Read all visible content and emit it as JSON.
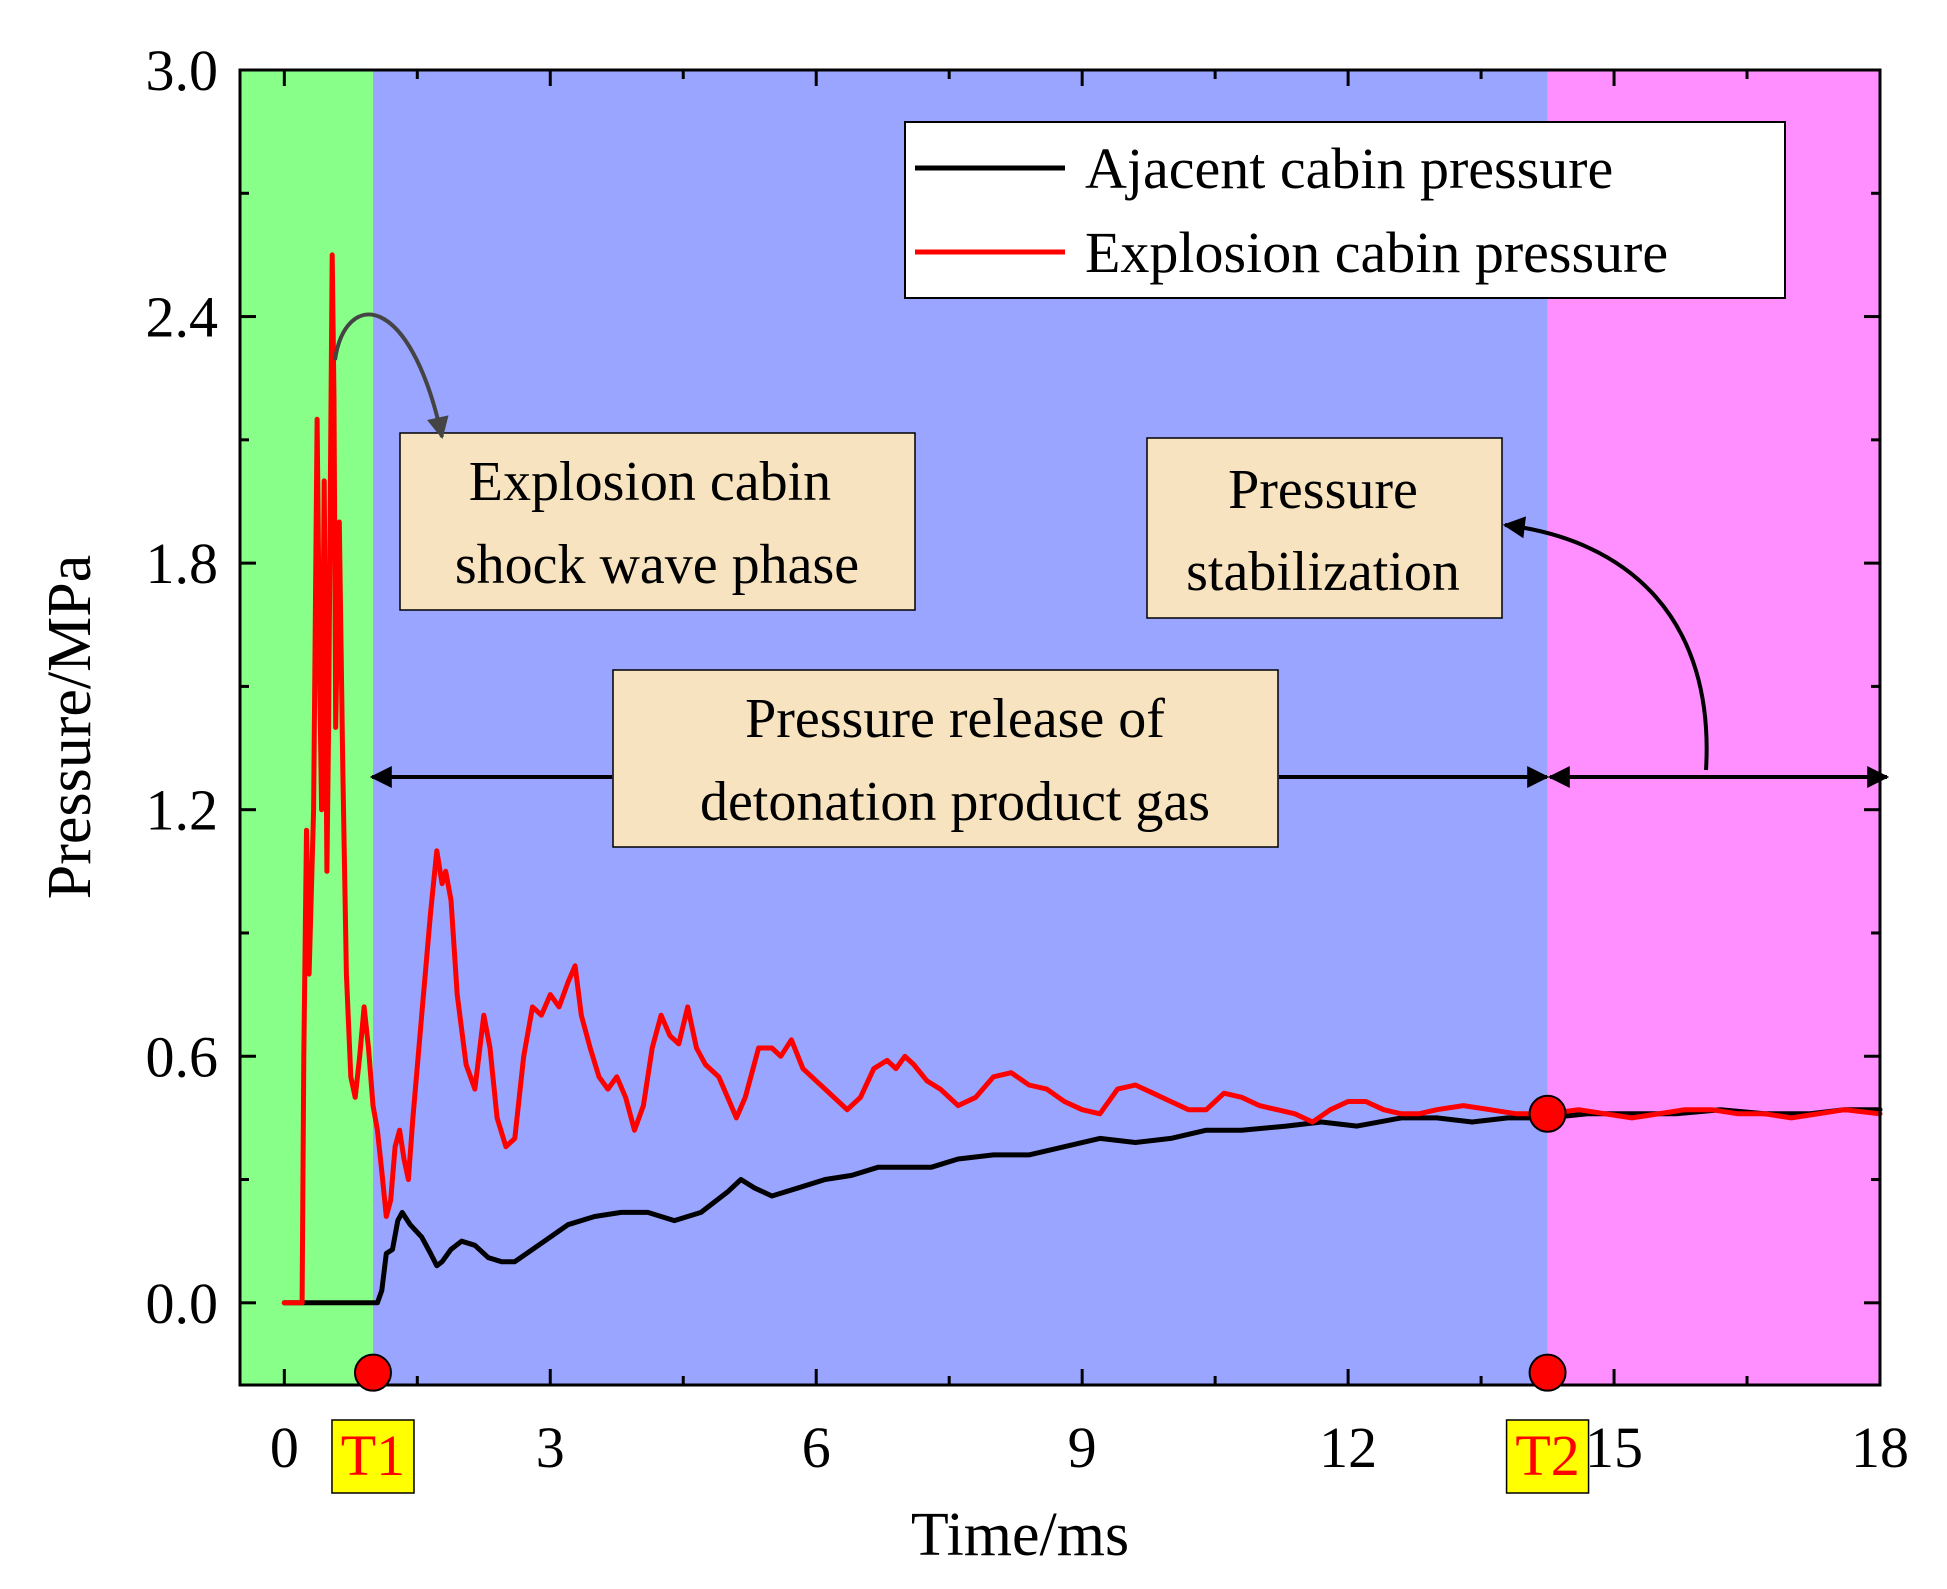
{
  "chart_data": {
    "type": "line",
    "xlabel": "Time/ms",
    "ylabel": "Pressure/MPa",
    "xlim": [
      -0.5,
      18
    ],
    "ylim": [
      -0.2,
      3.0
    ],
    "x_ticks": [
      "0",
      "3",
      "6",
      "9",
      "12",
      "15",
      "18"
    ],
    "x_tick_values": [
      0,
      3,
      6,
      9,
      12,
      15,
      18
    ],
    "y_ticks": [
      "0.0",
      "0.6",
      "1.2",
      "1.8",
      "2.4",
      "3.0"
    ],
    "y_tick_values": [
      0.0,
      0.6,
      1.2,
      1.8,
      2.4,
      3.0
    ],
    "phases": [
      {
        "name": "shock-wave",
        "x_start": -0.5,
        "x_end": 1.0,
        "color": "#88ff88"
      },
      {
        "name": "pressure-release",
        "x_start": 1.0,
        "x_end": 14.25,
        "color": "#9aa5ff"
      },
      {
        "name": "stabilization",
        "x_start": 14.25,
        "x_end": 18,
        "color": "#ff8eff"
      }
    ],
    "legend": {
      "placement": "top-right",
      "entries": [
        "Ajacent cabin pressure",
        "Explosion cabin pressure"
      ]
    },
    "series": [
      {
        "name": "Ajacent cabin pressure",
        "color": "#000000",
        "points": [
          [
            0,
            0
          ],
          [
            0.5,
            0
          ],
          [
            1.05,
            0
          ],
          [
            1.1,
            0.03
          ],
          [
            1.15,
            0.12
          ],
          [
            1.22,
            0.13
          ],
          [
            1.28,
            0.2
          ],
          [
            1.33,
            0.22
          ],
          [
            1.42,
            0.19
          ],
          [
            1.55,
            0.16
          ],
          [
            1.65,
            0.12
          ],
          [
            1.72,
            0.09
          ],
          [
            1.78,
            0.1
          ],
          [
            1.88,
            0.13
          ],
          [
            2.0,
            0.15
          ],
          [
            2.15,
            0.14
          ],
          [
            2.3,
            0.11
          ],
          [
            2.45,
            0.1
          ],
          [
            2.6,
            0.1
          ],
          [
            2.8,
            0.13
          ],
          [
            3.0,
            0.16
          ],
          [
            3.2,
            0.19
          ],
          [
            3.5,
            0.21
          ],
          [
            3.8,
            0.22
          ],
          [
            4.1,
            0.22
          ],
          [
            4.4,
            0.2
          ],
          [
            4.7,
            0.22
          ],
          [
            5.0,
            0.27
          ],
          [
            5.15,
            0.3
          ],
          [
            5.3,
            0.28
          ],
          [
            5.5,
            0.26
          ],
          [
            5.8,
            0.28
          ],
          [
            6.1,
            0.3
          ],
          [
            6.4,
            0.31
          ],
          [
            6.7,
            0.33
          ],
          [
            7.0,
            0.33
          ],
          [
            7.3,
            0.33
          ],
          [
            7.6,
            0.35
          ],
          [
            8.0,
            0.36
          ],
          [
            8.4,
            0.36
          ],
          [
            8.8,
            0.38
          ],
          [
            9.2,
            0.4
          ],
          [
            9.6,
            0.39
          ],
          [
            10.0,
            0.4
          ],
          [
            10.4,
            0.42
          ],
          [
            10.8,
            0.42
          ],
          [
            11.3,
            0.43
          ],
          [
            11.7,
            0.44
          ],
          [
            12.1,
            0.43
          ],
          [
            12.6,
            0.45
          ],
          [
            13.0,
            0.45
          ],
          [
            13.4,
            0.44
          ],
          [
            13.8,
            0.45
          ],
          [
            14.25,
            0.45
          ],
          [
            14.7,
            0.46
          ],
          [
            15.2,
            0.46
          ],
          [
            15.7,
            0.46
          ],
          [
            16.2,
            0.47
          ],
          [
            16.7,
            0.46
          ],
          [
            17.2,
            0.46
          ],
          [
            17.6,
            0.47
          ],
          [
            18,
            0.47
          ]
        ]
      },
      {
        "name": "Explosion cabin pressure",
        "color": "#ff0000",
        "points": [
          [
            0,
            0
          ],
          [
            0.2,
            0
          ],
          [
            0.22,
            0.6
          ],
          [
            0.25,
            1.15
          ],
          [
            0.28,
            0.8
          ],
          [
            0.33,
            1.2
          ],
          [
            0.37,
            2.15
          ],
          [
            0.4,
            1.5
          ],
          [
            0.42,
            1.2
          ],
          [
            0.45,
            2.0
          ],
          [
            0.48,
            1.05
          ],
          [
            0.5,
            1.4
          ],
          [
            0.52,
            2.0
          ],
          [
            0.54,
            2.55
          ],
          [
            0.56,
            2.2
          ],
          [
            0.58,
            1.4
          ],
          [
            0.62,
            1.9
          ],
          [
            0.66,
            1.3
          ],
          [
            0.7,
            0.8
          ],
          [
            0.75,
            0.55
          ],
          [
            0.8,
            0.5
          ],
          [
            0.85,
            0.6
          ],
          [
            0.9,
            0.72
          ],
          [
            0.95,
            0.62
          ],
          [
            1.0,
            0.48
          ],
          [
            1.05,
            0.42
          ],
          [
            1.1,
            0.32
          ],
          [
            1.15,
            0.21
          ],
          [
            1.2,
            0.25
          ],
          [
            1.25,
            0.38
          ],
          [
            1.3,
            0.42
          ],
          [
            1.35,
            0.35
          ],
          [
            1.4,
            0.3
          ],
          [
            1.45,
            0.45
          ],
          [
            1.55,
            0.7
          ],
          [
            1.65,
            0.95
          ],
          [
            1.72,
            1.1
          ],
          [
            1.78,
            1.02
          ],
          [
            1.82,
            1.05
          ],
          [
            1.88,
            0.98
          ],
          [
            1.95,
            0.75
          ],
          [
            2.05,
            0.58
          ],
          [
            2.15,
            0.52
          ],
          [
            2.25,
            0.7
          ],
          [
            2.32,
            0.62
          ],
          [
            2.4,
            0.45
          ],
          [
            2.5,
            0.38
          ],
          [
            2.6,
            0.4
          ],
          [
            2.7,
            0.6
          ],
          [
            2.8,
            0.72
          ],
          [
            2.9,
            0.7
          ],
          [
            3.0,
            0.75
          ],
          [
            3.1,
            0.72
          ],
          [
            3.2,
            0.78
          ],
          [
            3.28,
            0.82
          ],
          [
            3.35,
            0.7
          ],
          [
            3.45,
            0.62
          ],
          [
            3.55,
            0.55
          ],
          [
            3.65,
            0.52
          ],
          [
            3.75,
            0.55
          ],
          [
            3.85,
            0.5
          ],
          [
            3.95,
            0.42
          ],
          [
            4.05,
            0.48
          ],
          [
            4.15,
            0.62
          ],
          [
            4.25,
            0.7
          ],
          [
            4.35,
            0.65
          ],
          [
            4.45,
            0.63
          ],
          [
            4.55,
            0.72
          ],
          [
            4.65,
            0.62
          ],
          [
            4.75,
            0.58
          ],
          [
            4.9,
            0.55
          ],
          [
            5.0,
            0.5
          ],
          [
            5.1,
            0.45
          ],
          [
            5.2,
            0.5
          ],
          [
            5.35,
            0.62
          ],
          [
            5.5,
            0.62
          ],
          [
            5.6,
            0.6
          ],
          [
            5.72,
            0.64
          ],
          [
            5.85,
            0.57
          ],
          [
            6.0,
            0.54
          ],
          [
            6.1,
            0.52
          ],
          [
            6.2,
            0.5
          ],
          [
            6.35,
            0.47
          ],
          [
            6.5,
            0.5
          ],
          [
            6.65,
            0.57
          ],
          [
            6.8,
            0.59
          ],
          [
            6.9,
            0.57
          ],
          [
            7.0,
            0.6
          ],
          [
            7.1,
            0.58
          ],
          [
            7.25,
            0.54
          ],
          [
            7.4,
            0.52
          ],
          [
            7.6,
            0.48
          ],
          [
            7.8,
            0.5
          ],
          [
            8.0,
            0.55
          ],
          [
            8.2,
            0.56
          ],
          [
            8.4,
            0.53
          ],
          [
            8.6,
            0.52
          ],
          [
            8.8,
            0.49
          ],
          [
            9.0,
            0.47
          ],
          [
            9.2,
            0.46
          ],
          [
            9.4,
            0.52
          ],
          [
            9.6,
            0.53
          ],
          [
            9.8,
            0.51
          ],
          [
            10.0,
            0.49
          ],
          [
            10.2,
            0.47
          ],
          [
            10.4,
            0.47
          ],
          [
            10.6,
            0.51
          ],
          [
            10.8,
            0.5
          ],
          [
            11.0,
            0.48
          ],
          [
            11.2,
            0.47
          ],
          [
            11.4,
            0.46
          ],
          [
            11.6,
            0.44
          ],
          [
            11.8,
            0.47
          ],
          [
            12.0,
            0.49
          ],
          [
            12.2,
            0.49
          ],
          [
            12.4,
            0.47
          ],
          [
            12.6,
            0.46
          ],
          [
            12.8,
            0.46
          ],
          [
            13.0,
            0.47
          ],
          [
            13.3,
            0.48
          ],
          [
            13.6,
            0.47
          ],
          [
            13.9,
            0.46
          ],
          [
            14.25,
            0.46
          ],
          [
            14.6,
            0.47
          ],
          [
            14.9,
            0.46
          ],
          [
            15.2,
            0.45
          ],
          [
            15.5,
            0.46
          ],
          [
            15.8,
            0.47
          ],
          [
            16.1,
            0.47
          ],
          [
            16.4,
            0.46
          ],
          [
            16.7,
            0.46
          ],
          [
            17.0,
            0.45
          ],
          [
            17.3,
            0.46
          ],
          [
            17.6,
            0.47
          ],
          [
            18,
            0.46
          ]
        ]
      }
    ],
    "markers": [
      {
        "label": "T1",
        "x": 1.0,
        "y_axis_point": -0.17
      },
      {
        "label": "T2",
        "x": 14.25,
        "y_axis_point": -0.17
      }
    ],
    "intersection_point": {
      "x": 14.25,
      "y": 0.46
    },
    "annotations": [
      {
        "lines": [
          "Explosion cabin",
          "shock wave phase"
        ]
      },
      {
        "lines": [
          "Pressure release of",
          "detonation product gas"
        ]
      },
      {
        "lines": [
          "Pressure",
          "stabilization"
        ]
      }
    ]
  },
  "colors": {
    "annotation_box": "#f7e3bf",
    "marker_box": "#ffff00",
    "marker_dot": "#ff0000"
  }
}
